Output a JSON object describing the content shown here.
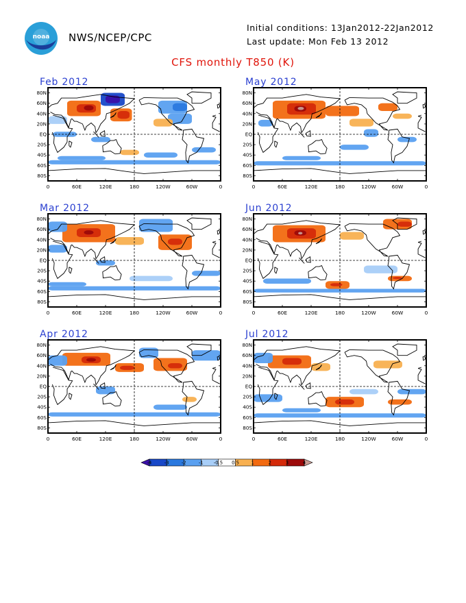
{
  "header": {
    "org": "NWS/NCEP/CPC",
    "initial_conditions": "Initial conditions: 13Jan2012-22Jan2012",
    "last_update": "Last update: Mon Feb 13 2012",
    "logo_text": "noaa"
  },
  "title": "CFS monthly T850 (K)",
  "panels": [
    {
      "label": "Feb 2012"
    },
    {
      "label": "May 2012"
    },
    {
      "label": "Mar 2012"
    },
    {
      "label": "Jun 2012"
    },
    {
      "label": "Apr 2012"
    },
    {
      "label": "Jul 2012"
    }
  ],
  "axes": {
    "lat_labels": [
      "80N",
      "60N",
      "40N",
      "20N",
      "EQ",
      "20S",
      "40S",
      "60S",
      "80S"
    ],
    "lon_labels": [
      "0",
      "60E",
      "120E",
      "180",
      "120W",
      "60W",
      "0"
    ]
  },
  "chart_data": {
    "type": "heatmap",
    "title": "CFS monthly T850 (K)",
    "variable": "850 hPa temperature anomaly",
    "units": "K",
    "colorbar": {
      "levels": [
        "-4",
        "-3",
        "-2",
        "-1",
        "-0.5",
        "0.5",
        "1",
        "2",
        "3",
        "4"
      ],
      "colors": [
        "#3a10a8",
        "#1848c8",
        "#2a78de",
        "#5aa0f0",
        "#a8cef8",
        "#ffffff",
        "#f8b050",
        "#f26a10",
        "#d42a0a",
        "#9c0a0a",
        "#c89c94"
      ]
    },
    "maps": [
      {
        "month": "Feb 2012",
        "features": [
          "warm anomaly Eurasia 40-60N",
          "strong cold anomaly Arctic/NE Asia",
          "warm anomaly central North Pacific",
          "cold anomaly North America 40-60N",
          "cold bands Southern Ocean"
        ]
      },
      {
        "month": "May 2012",
        "features": [
          "strong warm anomaly central Asia 40-60N",
          "warm anomaly North Pacific",
          "warm anomaly North Atlantic",
          "cold anomalies Southern Ocean"
        ]
      },
      {
        "month": "Mar 2012",
        "features": [
          "warm anomaly Eurasia",
          "warm anomaly North America east",
          "cold anomaly Arctic",
          "cold bands Southern Ocean"
        ]
      },
      {
        "month": "Jun 2012",
        "features": [
          "strong warm anomaly Asia",
          "warm anomaly Arctic/Greenland",
          "warm anomaly South Pacific 40-60S",
          "cold anomaly Southern Ocean"
        ]
      },
      {
        "month": "Apr 2012",
        "features": [
          "warm anomaly Eurasia",
          "warm anomaly North Pacific/North America",
          "cold anomaly western Eurasia",
          "cold bands Southern Ocean"
        ]
      },
      {
        "month": "Jul 2012",
        "features": [
          "warm anomaly Eurasia 40-60N",
          "warm anomaly South Pacific 20-40S",
          "cold anomalies Southern Hemisphere oceans"
        ]
      }
    ]
  }
}
